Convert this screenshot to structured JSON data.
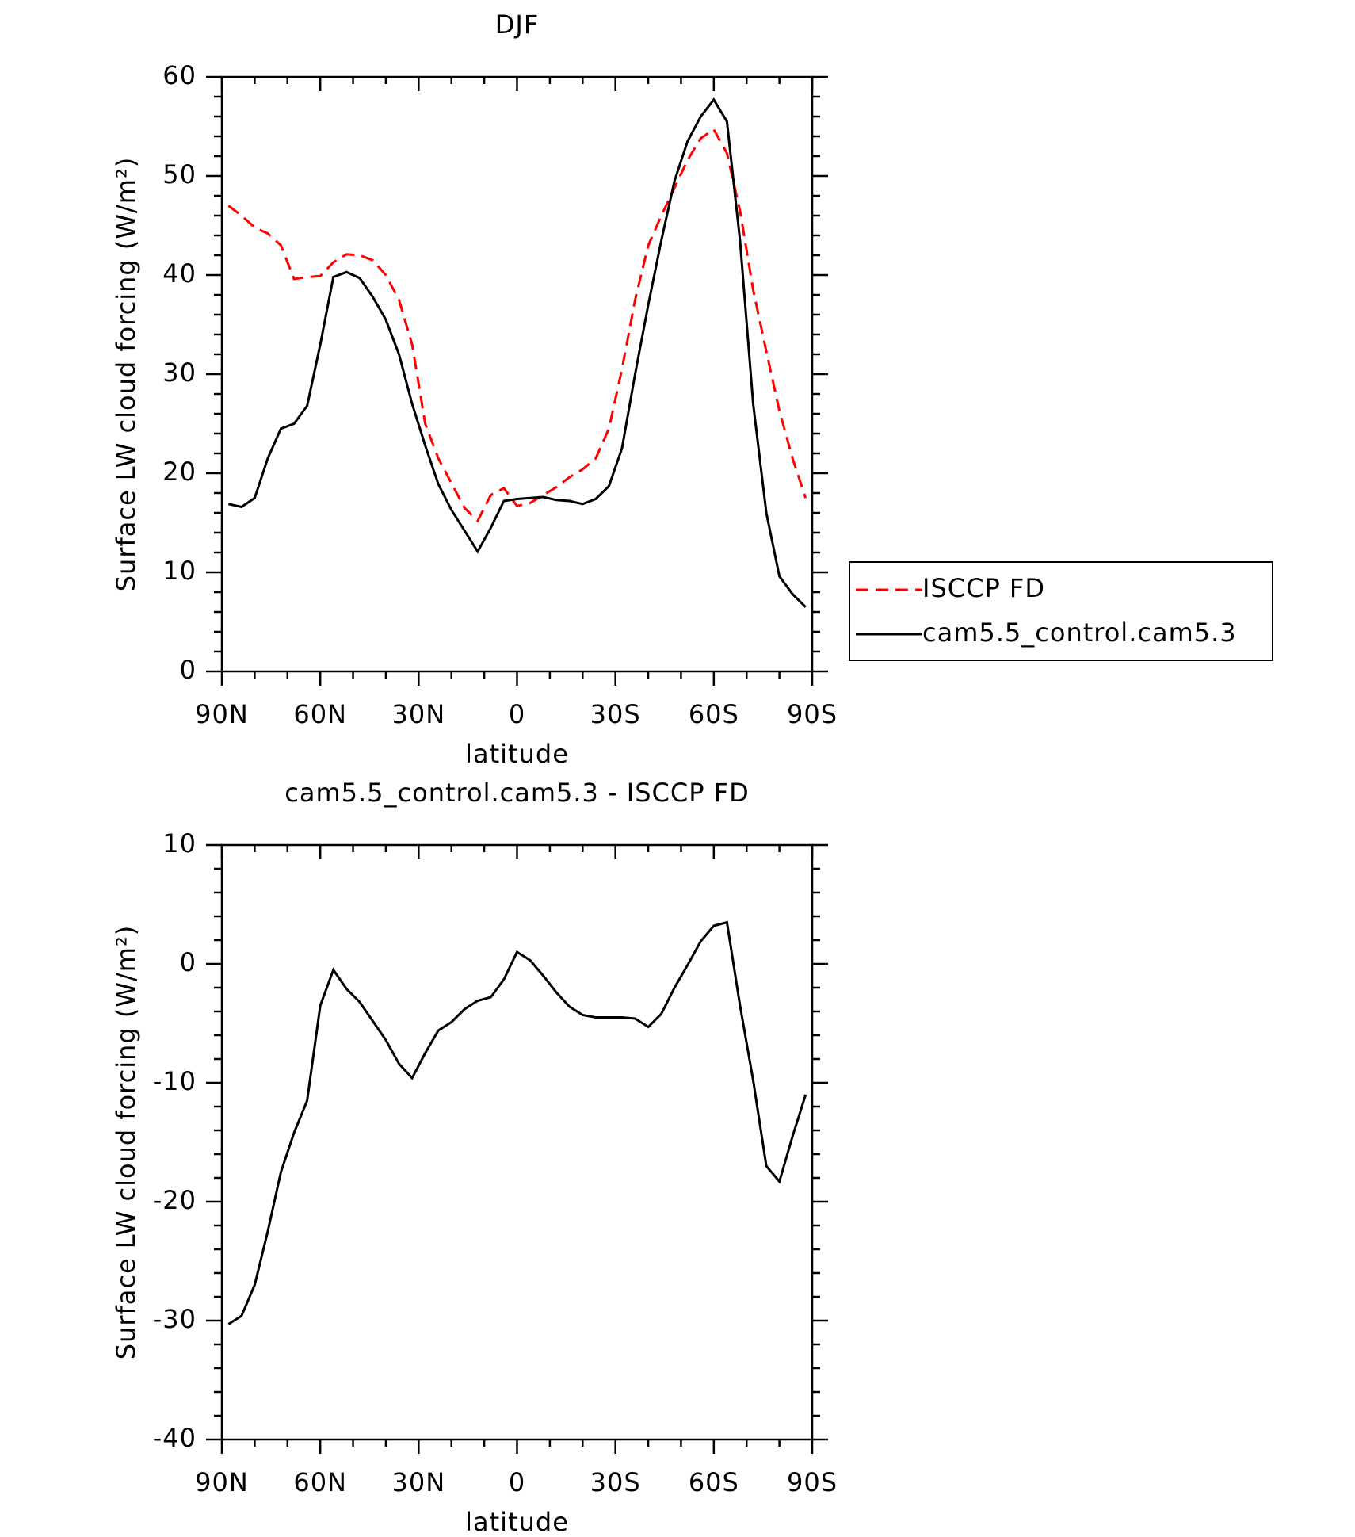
{
  "chart_data": [
    {
      "type": "line",
      "title": "DJF",
      "xlabel": "latitude",
      "ylabel": "Surface LW cloud forcing (W/m²)",
      "x": [
        88,
        84,
        80,
        76,
        72,
        68,
        64,
        60,
        56,
        52,
        48,
        44,
        40,
        36,
        32,
        28,
        24,
        20,
        16,
        12,
        8,
        4,
        0,
        -4,
        -8,
        -12,
        -16,
        -20,
        -24,
        -28,
        -32,
        -36,
        -40,
        -44,
        -48,
        -52,
        -56,
        -60,
        -64,
        -68,
        -72,
        -76,
        -80,
        -84,
        -88
      ],
      "series": [
        {
          "name": "ISCCP FD",
          "color": "#ff0000",
          "dashed": true,
          "values": [
            47.0,
            46.0,
            44.8,
            44.2,
            43,
            39.6,
            39.8,
            39.9,
            41.3,
            42.1,
            42,
            41.5,
            40,
            37.5,
            33,
            25,
            21.5,
            19,
            16.5,
            15.2,
            17.8,
            18.5,
            16.7,
            17,
            17.8,
            18.6,
            19.6,
            20.4,
            21.5,
            24.5,
            30.5,
            37.5,
            43,
            46,
            48.8,
            51.6,
            53.8,
            54.7,
            52.3,
            46.5,
            38.5,
            32.3,
            26.3,
            21.5,
            17.5
          ]
        },
        {
          "name": "cam5.5_control.cam5.3",
          "color": "#000000",
          "dashed": false,
          "values": [
            16.9,
            16.6,
            17.5,
            21.5,
            24.5,
            25,
            26.8,
            33,
            39.8,
            40.3,
            39.7,
            37.8,
            35.5,
            32,
            27,
            22.8,
            18.9,
            16.3,
            14.2,
            12.1,
            14.5,
            17.2,
            17.4,
            17.5,
            17.6,
            17.3,
            17.2,
            16.9,
            17.4,
            18.7,
            22.5,
            30,
            37,
            43.5,
            49.5,
            53.5,
            56,
            57.7,
            55.5,
            43.5,
            27,
            16,
            9.6,
            7.8,
            6.5
          ]
        }
      ],
      "xlim": [
        90,
        -90
      ],
      "xticks": [
        {
          "value": 90,
          "label": "90N"
        },
        {
          "value": 60,
          "label": "60N"
        },
        {
          "value": 30,
          "label": "30N"
        },
        0,
        {
          "value": -30,
          "label": "30S"
        },
        {
          "value": -60,
          "label": "60S"
        },
        {
          "value": -90,
          "label": "90S"
        }
      ],
      "xminorticks": [
        80,
        70,
        50,
        40,
        20,
        10,
        -10,
        -20,
        -40,
        -50,
        -70,
        -80
      ],
      "ylim": [
        0,
        60
      ],
      "yticks": [
        0,
        10,
        20,
        30,
        40,
        50,
        60
      ],
      "yminorticks": [
        2,
        4,
        6,
        8,
        12,
        14,
        16,
        18,
        22,
        24,
        26,
        28,
        32,
        34,
        36,
        38,
        42,
        44,
        46,
        48,
        52,
        54,
        56,
        58
      ],
      "legend": "outside-right"
    },
    {
      "type": "line",
      "title": "cam5.5_control.cam5.3 - ISCCP FD",
      "xlabel": "latitude",
      "ylabel": "Surface LW cloud forcing (W/m²)",
      "x": [
        88,
        84,
        80,
        76,
        72,
        68,
        64,
        60,
        56,
        52,
        48,
        44,
        40,
        36,
        32,
        28,
        24,
        20,
        16,
        12,
        8,
        4,
        0,
        -4,
        -8,
        -12,
        -16,
        -20,
        -24,
        -28,
        -32,
        -36,
        -40,
        -44,
        -48,
        -52,
        -56,
        -60,
        -64,
        -68,
        -72,
        -76,
        -80,
        -84,
        -88
      ],
      "series": [
        {
          "color": "#000000",
          "dashed": false,
          "values": [
            -30.3,
            -29.6,
            -27,
            -22.5,
            -17.5,
            -14.2,
            -11.5,
            -3.5,
            -0.5,
            -2.1,
            -3.2,
            -4.8,
            -6.4,
            -8.4,
            -9.6,
            -7.5,
            -5.6,
            -4.9,
            -3.8,
            -3.1,
            -2.8,
            -1.3,
            1.0,
            0.3,
            -1,
            -2.4,
            -3.6,
            -4.3,
            -4.5,
            -4.5,
            -4.5,
            -4.6,
            -5.3,
            -4.2,
            -2,
            -0.1,
            1.9,
            3.2,
            3.5,
            -3.5,
            -9.8,
            -17,
            -18.3,
            -14.5,
            -11
          ]
        }
      ],
      "xlim": [
        90,
        -90
      ],
      "xticks": [
        {
          "value": 90,
          "label": "90N"
        },
        {
          "value": 60,
          "label": "60N"
        },
        {
          "value": 30,
          "label": "30N"
        },
        0,
        {
          "value": -30,
          "label": "30S"
        },
        {
          "value": -60,
          "label": "60S"
        },
        {
          "value": -90,
          "label": "90S"
        }
      ],
      "xminorticks": [
        80,
        70,
        50,
        40,
        20,
        10,
        -10,
        -20,
        -40,
        -50,
        -70,
        -80
      ],
      "ylim": [
        -40,
        10
      ],
      "yticks": [
        -40,
        -30,
        -20,
        -10,
        0,
        10
      ],
      "yminorticks": [
        -38,
        -36,
        -34,
        -32,
        -28,
        -26,
        -24,
        -22,
        -18,
        -16,
        -14,
        -12,
        -8,
        -6,
        -4,
        -2,
        2,
        4,
        6,
        8
      ]
    }
  ]
}
